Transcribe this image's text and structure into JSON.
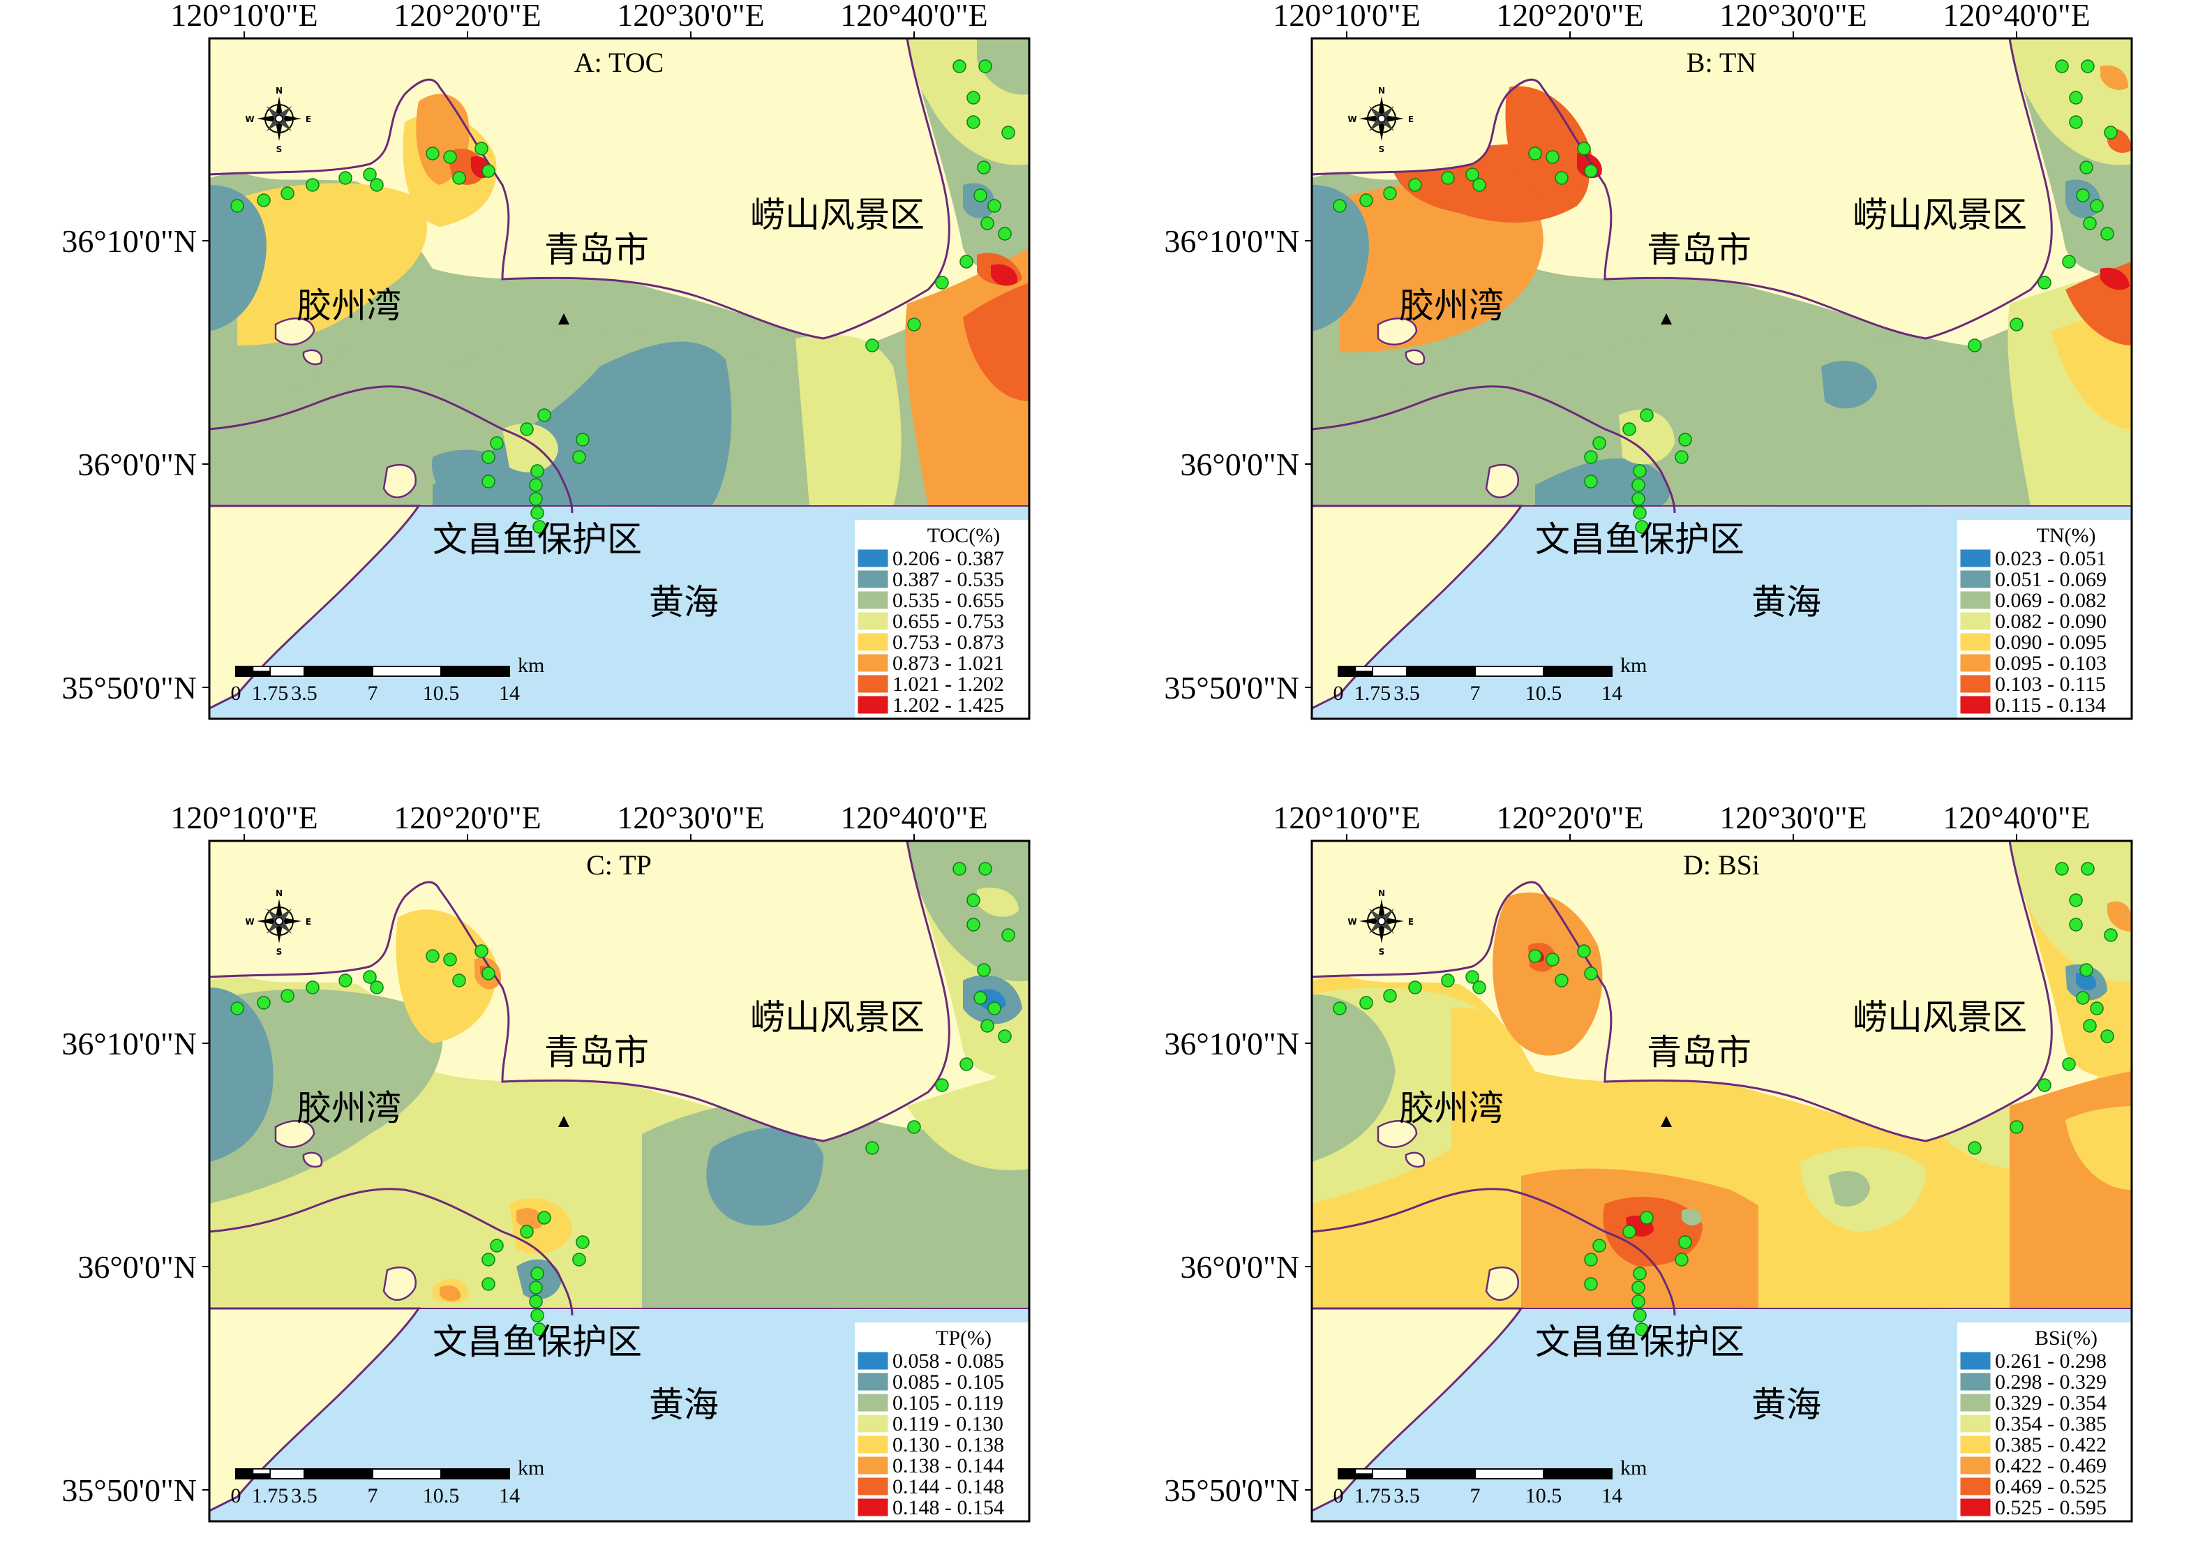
{
  "coordinate_labels": {
    "x": [
      "120°10'0\"E",
      "120°20'0\"E",
      "120°30'0\"E",
      "120°40'0\"E"
    ],
    "y": [
      "36°10'0\"N",
      "36°0'0\"N",
      "35°50'0\"N"
    ]
  },
  "place_names": {
    "city": "青岛市",
    "bay": "胶州湾",
    "scenic": "崂山风景区",
    "reserve": "文昌鱼保护区",
    "sea": "黄海"
  },
  "compass": {
    "n": "N",
    "s": "S",
    "e": "E",
    "w": "W"
  },
  "scale_bar": {
    "unit": "km",
    "ticks": [
      "0",
      "1.75",
      "3.5",
      "7",
      "10.5",
      "14"
    ]
  },
  "colors": {
    "sea": "#bfe3f7",
    "land": "#fffbc9",
    "coast": "#6a2a7a",
    "sample_point": "#2ee82e",
    "classes": [
      "#2b87c6",
      "#6a9fa8",
      "#a7c391",
      "#e4ea8a",
      "#fdd95a",
      "#f9a03e",
      "#f06426",
      "#e2161b"
    ]
  },
  "panels": [
    {
      "id": "A",
      "title": "A: TOC",
      "legend_title": "TOC(%)",
      "classes": [
        "0.206 - 0.387",
        "0.387 - 0.535",
        "0.535 - 0.655",
        "0.655 - 0.753",
        "0.753 - 0.873",
        "0.873 - 1.021",
        "1.021 - 1.202",
        "1.202 - 1.425"
      ]
    },
    {
      "id": "B",
      "title": "B: TN",
      "legend_title": "TN(%)",
      "classes": [
        "0.023 - 0.051",
        "0.051 - 0.069",
        "0.069 - 0.082",
        "0.082 - 0.090",
        "0.090 - 0.095",
        "0.095 - 0.103",
        "0.103 - 0.115",
        "0.115 - 0.134"
      ]
    },
    {
      "id": "C",
      "title": "C: TP",
      "legend_title": "TP(%)",
      "classes": [
        "0.058 - 0.085",
        "0.085 - 0.105",
        "0.105 - 0.119",
        "0.119 - 0.130",
        "0.130 - 0.138",
        "0.138 - 0.144",
        "0.144 - 0.148",
        "0.148 - 0.154"
      ]
    },
    {
      "id": "D",
      "title": "D: BSi",
      "legend_title": "BSi(%)",
      "classes": [
        "0.261 - 0.298",
        "0.298 - 0.329",
        "0.329 - 0.354",
        "0.354 - 0.385",
        "0.385 - 0.422",
        "0.422 - 0.469",
        "0.469 - 0.525",
        "0.525 - 0.595"
      ]
    }
  ]
}
